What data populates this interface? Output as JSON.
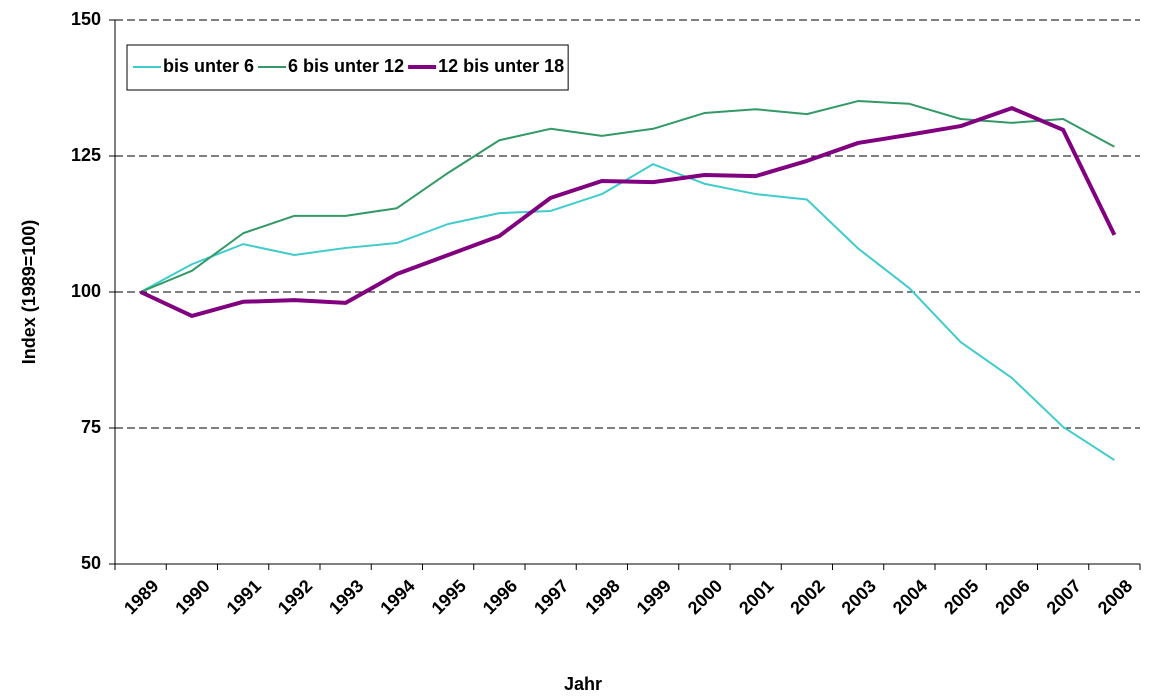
{
  "chart_data": {
    "type": "line",
    "x_label": "Jahr",
    "y_label": "Index (1989=100)",
    "categories": [
      "1989",
      "1990",
      "1991",
      "1992",
      "1993",
      "1994",
      "1995",
      "1996",
      "1997",
      "1998",
      "1999",
      "2000",
      "2001",
      "2002",
      "2003",
      "2004",
      "2005",
      "2006",
      "2007",
      "2008"
    ],
    "series": [
      {
        "name": "bis unter 6",
        "color": "#40cccc",
        "width": 2,
        "values": [
          100,
          105.1,
          108.8,
          106.8,
          108.1,
          109,
          112.5,
          114.5,
          114.9,
          118,
          123.5,
          119.9,
          118,
          117,
          108,
          100.7,
          90.8,
          84.2,
          75.2,
          69.1
        ]
      },
      {
        "name": "6 bis unter 12",
        "color": "#339966",
        "width": 2,
        "values": [
          100,
          103.9,
          110.8,
          114,
          114,
          115.4,
          121.9,
          127.9,
          130,
          128.7,
          130,
          132.9,
          133.6,
          132.7,
          135.1,
          134.6,
          131.8,
          131.1,
          131.8,
          126.7
        ]
      },
      {
        "name": "12 bis unter 18",
        "color": "#800080",
        "width": 4,
        "values": [
          100,
          95.6,
          98.2,
          98.5,
          98,
          103.3,
          106.8,
          110.3,
          117.3,
          120.4,
          120.2,
          121.5,
          121.3,
          124.1,
          127.4,
          128.9,
          130.5,
          133.8,
          129.8,
          110.5
        ]
      }
    ],
    "ylim": [
      50,
      150
    ],
    "yticks": [
      50,
      75,
      100,
      125,
      150
    ],
    "grid": true,
    "legend": "upper left"
  }
}
